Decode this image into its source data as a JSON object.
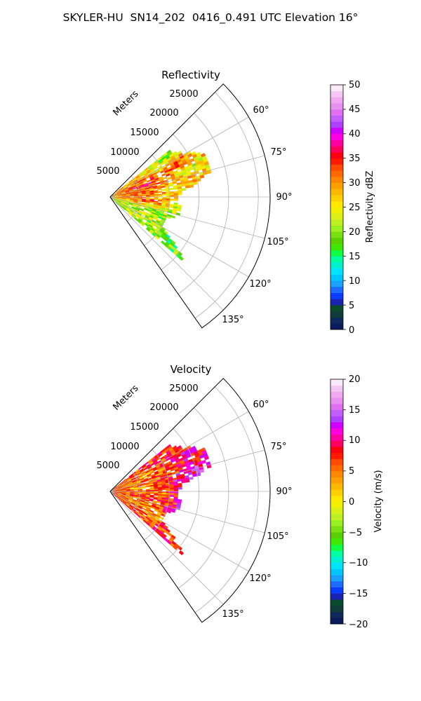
{
  "title": "SKYLER-HU  SN14_202  0416_0.491 UTC Elevation 16°",
  "chart_data": [
    {
      "type": "heatmap",
      "subtype": "polar-sector-ppi",
      "title": "Reflectivity",
      "radial_label": "Meters",
      "radial_ticks": [
        "5000",
        "10000",
        "15000",
        "20000",
        "25000"
      ],
      "rmax_m": 27000,
      "azimuth_range_deg": [
        45,
        145
      ],
      "azimuth_ticks": [
        "60°",
        "75°",
        "90°",
        "105°",
        "120°",
        "135°"
      ],
      "grid": true,
      "colorbar": {
        "label": "Reflectivity dBZ",
        "range": [
          0,
          50
        ],
        "ticks": [
          "0",
          "5",
          "10",
          "15",
          "20",
          "25",
          "30",
          "35",
          "40",
          "45",
          "50"
        ],
        "colors": [
          "#0b1a5e",
          "#0d2a5a",
          "#0f3d3a",
          "#0a4a2c",
          "#1a22b0",
          "#0a3cff",
          "#1e6cff",
          "#1aa0ff",
          "#00c8ff",
          "#00e4ff",
          "#00f0d0",
          "#00ffa0",
          "#10ff40",
          "#40e800",
          "#5ad000",
          "#78e010",
          "#9af020",
          "#bcf020",
          "#d8f018",
          "#f0f000",
          "#ffe800",
          "#ffd000",
          "#ffb800",
          "#ffa000",
          "#ff8800",
          "#ff6a00",
          "#ff4a00",
          "#ff1a00",
          "#ff0010",
          "#ff0060",
          "#ff00a0",
          "#ff00e0",
          "#d000ff",
          "#b040ff",
          "#c060ff",
          "#e070f0",
          "#e890f0",
          "#f0a8f0",
          "#f4c8f4",
          "#fbe8fb"
        ]
      },
      "field_samples_dbz": [
        {
          "az": 55,
          "r": 0.42,
          "v": 18
        },
        {
          "az": 60,
          "r": 0.35,
          "v": 24
        },
        {
          "az": 63,
          "r": 0.45,
          "v": 36
        },
        {
          "az": 66,
          "r": 0.3,
          "v": 34
        },
        {
          "az": 70,
          "r": 0.55,
          "v": 22
        },
        {
          "az": 72,
          "r": 0.25,
          "v": 38
        },
        {
          "az": 76,
          "r": 0.4,
          "v": 26
        },
        {
          "az": 80,
          "r": 0.6,
          "v": 28
        },
        {
          "az": 84,
          "r": 0.2,
          "v": 33
        },
        {
          "az": 88,
          "r": 0.5,
          "v": 27
        },
        {
          "az": 92,
          "r": 0.35,
          "v": 30
        },
        {
          "az": 96,
          "r": 0.25,
          "v": 35
        },
        {
          "az": 100,
          "r": 0.45,
          "v": 21
        },
        {
          "az": 104,
          "r": 0.55,
          "v": 14
        },
        {
          "az": 108,
          "r": 0.3,
          "v": 19
        },
        {
          "az": 112,
          "r": 0.5,
          "v": 17
        },
        {
          "az": 118,
          "r": 0.35,
          "v": 22
        },
        {
          "az": 122,
          "r": 0.45,
          "v": 16
        }
      ]
    },
    {
      "type": "heatmap",
      "subtype": "polar-sector-ppi",
      "title": "Velocity",
      "radial_label": "Meters",
      "radial_ticks": [
        "5000",
        "10000",
        "15000",
        "20000",
        "25000"
      ],
      "rmax_m": 27000,
      "azimuth_range_deg": [
        45,
        145
      ],
      "azimuth_ticks": [
        "60°",
        "75°",
        "90°",
        "105°",
        "120°",
        "135°"
      ],
      "grid": true,
      "colorbar": {
        "label": "Velocity (m/s)",
        "range": [
          -20,
          20
        ],
        "ticks": [
          "−20",
          "−15",
          "−10",
          "−5",
          "0",
          "5",
          "10",
          "15",
          "20"
        ],
        "colors": [
          "#0b1a5e",
          "#0d2a5a",
          "#0f3d3a",
          "#0a4a2c",
          "#1a22b0",
          "#0a3cff",
          "#1e6cff",
          "#1aa0ff",
          "#00c8ff",
          "#00e4ff",
          "#00f0d0",
          "#00ffa0",
          "#10ff40",
          "#40e800",
          "#5ad000",
          "#78e010",
          "#9af020",
          "#bcf020",
          "#d8f018",
          "#f0f000",
          "#ffe800",
          "#ffd000",
          "#ffb800",
          "#ffa000",
          "#ff8800",
          "#ff6a00",
          "#ff4a00",
          "#ff1a00",
          "#ff0010",
          "#ff0060",
          "#ff00a0",
          "#ff00e0",
          "#d000ff",
          "#b040ff",
          "#c060ff",
          "#e070f0",
          "#e890f0",
          "#f0a8f0",
          "#f4c8f4",
          "#fbe8fb"
        ]
      },
      "field_samples_ms": [
        {
          "az": 55,
          "r": 0.4,
          "v": 8
        },
        {
          "az": 60,
          "r": 0.3,
          "v": 5
        },
        {
          "az": 63,
          "r": 0.5,
          "v": 11
        },
        {
          "az": 66,
          "r": 0.25,
          "v": 2
        },
        {
          "az": 70,
          "r": 0.55,
          "v": 10
        },
        {
          "az": 72,
          "r": 0.35,
          "v": 4
        },
        {
          "az": 76,
          "r": 0.6,
          "v": 14
        },
        {
          "az": 80,
          "r": 0.45,
          "v": 12
        },
        {
          "az": 84,
          "r": 0.2,
          "v": 1
        },
        {
          "az": 88,
          "r": 0.55,
          "v": 15
        },
        {
          "az": 92,
          "r": 0.3,
          "v": 3
        },
        {
          "az": 96,
          "r": 0.5,
          "v": 13
        },
        {
          "az": 100,
          "r": 0.35,
          "v": 6
        },
        {
          "az": 104,
          "r": 0.5,
          "v": 16
        },
        {
          "az": 108,
          "r": 0.25,
          "v": 2
        },
        {
          "az": 112,
          "r": 0.45,
          "v": 10
        },
        {
          "az": 118,
          "r": 0.35,
          "v": 1
        },
        {
          "az": 122,
          "r": 0.45,
          "v": 9
        }
      ]
    }
  ]
}
